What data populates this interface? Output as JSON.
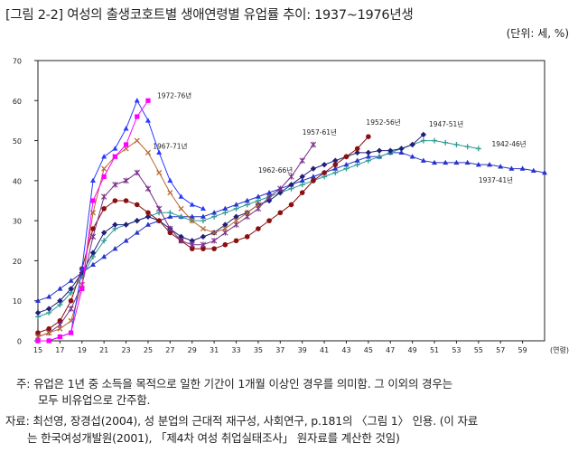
{
  "header": {
    "title": "[그림 2-2] 여성의 출생코호트별 생애연령별 유업률 추이: 1937~1976년생",
    "unit": "(단위: 세, %)"
  },
  "notes": {
    "line1": "주: 유업은 1년 중 소득을 목적으로 일한 기간이 1개월 이상인 경우를 의미함. 그 이외의 경우는",
    "line2": "모두 비유업으로 간주함.",
    "line3": "자료: 최선영, 장경섭(2004), 성 분업의 근대적 재구성, 사회연구, p.181의 〈그림 1〉 인용. (이 자료",
    "line4": "는 한국여성개발원(2001), 「제4차 여성 취업실태조사」 원자료를 계산한 것임)"
  },
  "chart_data": {
    "type": "line",
    "title": "",
    "xlabel": "(연령)",
    "ylabel": "",
    "xlim": [
      15,
      61
    ],
    "ylim": [
      0,
      70
    ],
    "grid": false,
    "xticks": [
      15,
      17,
      19,
      21,
      23,
      25,
      27,
      29,
      31,
      33,
      35,
      37,
      39,
      41,
      43,
      45,
      47,
      49,
      51,
      53,
      55,
      57,
      59
    ],
    "yticks": [
      0,
      10,
      20,
      30,
      40,
      50,
      60,
      70
    ],
    "series": [
      {
        "name": "1937-41년",
        "color": "#2633cc",
        "marker": "triangle",
        "x": [
          15,
          16,
          17,
          18,
          19,
          20,
          21,
          22,
          23,
          24,
          25,
          26,
          27,
          28,
          29,
          30,
          31,
          32,
          33,
          34,
          35,
          36,
          37,
          38,
          39,
          40,
          41,
          42,
          43,
          44,
          45,
          46,
          47,
          48,
          49,
          50,
          51,
          52,
          53,
          54,
          55,
          56,
          57,
          58,
          59,
          60,
          61
        ],
        "y": [
          10,
          11,
          13,
          15,
          17,
          19,
          21,
          23,
          25,
          27,
          29,
          30,
          31,
          31,
          31,
          31,
          32,
          33,
          34,
          35,
          36,
          37,
          38,
          39,
          40,
          41,
          42,
          43,
          44,
          45,
          46,
          46,
          47,
          47,
          46,
          45,
          44.5,
          44.5,
          44.5,
          44.5,
          44,
          44,
          43.5,
          43,
          43,
          42.5,
          42
        ]
      },
      {
        "name": "1942-46년",
        "color": "#2e9a94",
        "marker": "plus",
        "x": [
          15,
          16,
          17,
          18,
          19,
          20,
          21,
          22,
          23,
          24,
          25,
          26,
          27,
          28,
          29,
          30,
          31,
          32,
          33,
          34,
          35,
          36,
          37,
          38,
          39,
          40,
          41,
          42,
          43,
          44,
          45,
          46,
          47,
          48,
          49,
          50,
          51,
          52,
          53,
          54,
          55
        ],
        "y": [
          6,
          7,
          9,
          12,
          16,
          21,
          25,
          28,
          29,
          30,
          31,
          32,
          32,
          31,
          30,
          30,
          31,
          32,
          33,
          34,
          35,
          36,
          37,
          38,
          39,
          40,
          41,
          42,
          43,
          44,
          45,
          46,
          47,
          48,
          49,
          50,
          50,
          49.5,
          49,
          48.5,
          48
        ]
      },
      {
        "name": "1947-51년",
        "color": "#20207a",
        "marker": "diamond",
        "x": [
          15,
          16,
          17,
          18,
          19,
          20,
          21,
          22,
          23,
          24,
          25,
          26,
          27,
          28,
          29,
          30,
          31,
          32,
          33,
          34,
          35,
          36,
          37,
          38,
          39,
          40,
          41,
          42,
          43,
          44,
          45,
          46,
          47,
          48,
          49,
          50
        ],
        "y": [
          7,
          8,
          10,
          13,
          17,
          22,
          27,
          29,
          29,
          30,
          31,
          30,
          28,
          26,
          25,
          26,
          27,
          29,
          31,
          32,
          34,
          35,
          37,
          39,
          41,
          43,
          44,
          45,
          46,
          47,
          47,
          47.5,
          47.5,
          48,
          49,
          51.5
        ]
      },
      {
        "name": "1952-56년",
        "color": "#8a1010",
        "marker": "circle",
        "x": [
          15,
          16,
          17,
          18,
          19,
          20,
          21,
          22,
          23,
          24,
          25,
          26,
          27,
          28,
          29,
          30,
          31,
          32,
          33,
          34,
          35,
          36,
          37,
          38,
          39,
          40,
          41,
          42,
          43,
          44,
          45
        ],
        "y": [
          2,
          3,
          5,
          10,
          18,
          28,
          33,
          35,
          35,
          34,
          32,
          30,
          27,
          25,
          23,
          23,
          23,
          24,
          25,
          26,
          28,
          30,
          32,
          34,
          37,
          40,
          42,
          44,
          46,
          48,
          51
        ]
      },
      {
        "name": "1957-61년",
        "color": "#7a2e8a",
        "marker": "cross",
        "x": [
          15,
          16,
          17,
          18,
          19,
          20,
          21,
          22,
          23,
          24,
          25,
          26,
          27,
          28,
          29,
          30,
          31,
          32,
          33,
          34,
          35,
          36,
          37,
          38,
          39,
          40
        ],
        "y": [
          1,
          2,
          4,
          8,
          14,
          26,
          36,
          39,
          40,
          42,
          38,
          33,
          28,
          25,
          24,
          24,
          25,
          27,
          29,
          31,
          33,
          36,
          38,
          41,
          45,
          49
        ]
      },
      {
        "name": "1962-66년",
        "color": "#b86a30",
        "marker": "x",
        "x": [
          15,
          16,
          17,
          18,
          19,
          20,
          21,
          22,
          23,
          24,
          25,
          26,
          27,
          28,
          29,
          30,
          31,
          32,
          33,
          34,
          35
        ],
        "y": [
          1,
          2,
          3,
          5,
          14,
          32,
          43,
          46,
          48,
          50,
          47,
          42,
          37,
          33,
          30,
          28,
          27,
          28,
          30,
          32,
          34
        ]
      },
      {
        "name": "1967-71년",
        "color": "#2a3bff",
        "marker": "triangle",
        "x": [
          15,
          16,
          17,
          18,
          19,
          20,
          21,
          22,
          23,
          24,
          25,
          26,
          27,
          28,
          29,
          30
        ],
        "y": [
          0,
          0,
          1,
          2,
          18,
          40,
          46,
          48,
          53,
          60,
          55,
          47,
          40,
          36,
          34,
          33
        ]
      },
      {
        "name": "1972-76년",
        "color": "#ff00ff",
        "marker": "square",
        "x": [
          15,
          16,
          17,
          18,
          19,
          20,
          21,
          22,
          23,
          24,
          25
        ],
        "y": [
          0,
          0,
          1,
          2,
          13,
          35,
          41,
          46,
          49,
          56,
          60
        ]
      }
    ]
  }
}
